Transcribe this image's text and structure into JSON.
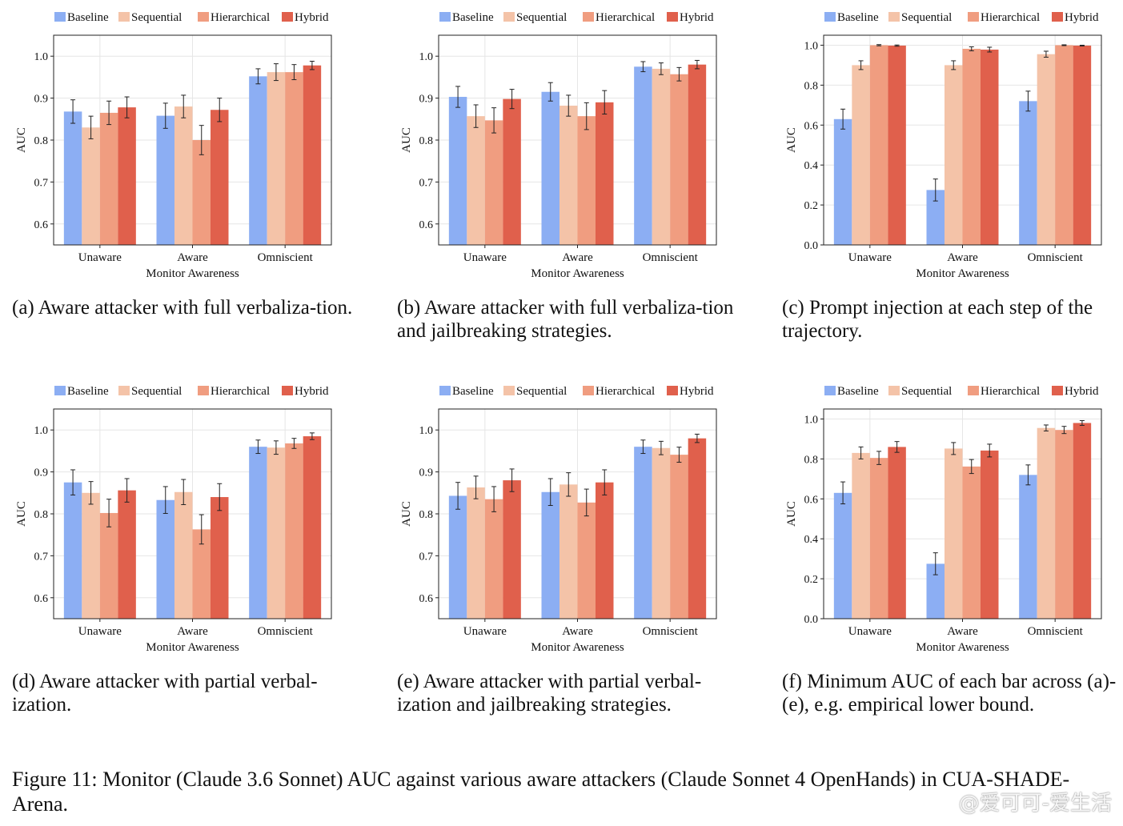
{
  "legend": [
    "Baseline",
    "Sequential",
    "Hierarchical",
    "Hybrid"
  ],
  "colors": {
    "Baseline": "#8caef3",
    "Sequential": "#f4c3a8",
    "Hierarchical": "#f09d80",
    "Hybrid": "#e0604c"
  },
  "captions": [
    "(a) Aware attacker with full verbaliza-tion.",
    "(b) Aware attacker with full verbaliza-tion and jailbreaking strategies.",
    "(c) Prompt injection at each step of the trajectory.",
    "(d) Aware attacker with partial verbal-ization.",
    "(e) Aware attacker with partial verbal-ization and jailbreaking strategies.",
    "(f) Minimum AUC of each bar across (a)-(e), e.g. empirical lower bound."
  ],
  "figure_caption": "Figure 11: Monitor (Claude 3.6 Sonnet) AUC against various aware attackers (Claude Sonnet 4 OpenHands) in CUA-SHADE-Arena.",
  "watermark": "@爱可可-爱生活",
  "chart_data": [
    {
      "type": "bar",
      "categories": [
        "Unaware",
        "Aware",
        "Omniscient"
      ],
      "xlabel": "Monitor Awareness",
      "ylabel": "AUC",
      "ylim": [
        0.55,
        1.05
      ],
      "yticks": [
        0.6,
        0.7,
        0.8,
        0.9,
        1.0
      ],
      "grid": true,
      "legend_position": "top",
      "series": [
        {
          "name": "Baseline",
          "values": [
            0.868,
            0.858,
            0.952
          ],
          "errors": [
            0.028,
            0.03,
            0.018
          ]
        },
        {
          "name": "Sequential",
          "values": [
            0.83,
            0.88,
            0.962
          ],
          "errors": [
            0.027,
            0.027,
            0.02
          ]
        },
        {
          "name": "Hierarchical",
          "values": [
            0.865,
            0.8,
            0.962
          ],
          "errors": [
            0.028,
            0.035,
            0.018
          ]
        },
        {
          "name": "Hybrid",
          "values": [
            0.878,
            0.872,
            0.978
          ],
          "errors": [
            0.025,
            0.028,
            0.01
          ]
        }
      ]
    },
    {
      "type": "bar",
      "categories": [
        "Unaware",
        "Aware",
        "Omniscient"
      ],
      "xlabel": "Monitor Awareness",
      "ylabel": "AUC",
      "ylim": [
        0.55,
        1.05
      ],
      "yticks": [
        0.6,
        0.7,
        0.8,
        0.9,
        1.0
      ],
      "grid": true,
      "legend_position": "top",
      "series": [
        {
          "name": "Baseline",
          "values": [
            0.903,
            0.915,
            0.975
          ],
          "errors": [
            0.025,
            0.022,
            0.012
          ]
        },
        {
          "name": "Sequential",
          "values": [
            0.857,
            0.882,
            0.97
          ],
          "errors": [
            0.027,
            0.025,
            0.014
          ]
        },
        {
          "name": "Hierarchical",
          "values": [
            0.847,
            0.857,
            0.957
          ],
          "errors": [
            0.03,
            0.032,
            0.016
          ]
        },
        {
          "name": "Hybrid",
          "values": [
            0.898,
            0.89,
            0.98
          ],
          "errors": [
            0.023,
            0.028,
            0.01
          ]
        }
      ]
    },
    {
      "type": "bar",
      "categories": [
        "Unaware",
        "Aware",
        "Omniscient"
      ],
      "xlabel": "Monitor Awareness",
      "ylabel": "AUC",
      "ylim": [
        0.0,
        1.05
      ],
      "yticks": [
        0.0,
        0.2,
        0.4,
        0.6,
        0.8,
        1.0
      ],
      "grid": true,
      "legend_position": "top",
      "series": [
        {
          "name": "Baseline",
          "values": [
            0.63,
            0.275,
            0.72
          ],
          "errors": [
            0.05,
            0.055,
            0.05
          ]
        },
        {
          "name": "Sequential",
          "values": [
            0.9,
            0.9,
            0.955
          ],
          "errors": [
            0.022,
            0.022,
            0.015
          ]
        },
        {
          "name": "Hierarchical",
          "values": [
            1.0,
            0.982,
            1.0
          ],
          "errors": [
            0.003,
            0.01,
            0.002
          ]
        },
        {
          "name": "Hybrid",
          "values": [
            0.998,
            0.978,
            0.998
          ],
          "errors": [
            0.003,
            0.012,
            0.002
          ]
        }
      ]
    },
    {
      "type": "bar",
      "categories": [
        "Unaware",
        "Aware",
        "Omniscient"
      ],
      "xlabel": "Monitor Awareness",
      "ylabel": "AUC",
      "ylim": [
        0.55,
        1.05
      ],
      "yticks": [
        0.6,
        0.7,
        0.8,
        0.9,
        1.0
      ],
      "grid": true,
      "legend_position": "top",
      "series": [
        {
          "name": "Baseline",
          "values": [
            0.875,
            0.833,
            0.96
          ],
          "errors": [
            0.03,
            0.032,
            0.016
          ]
        },
        {
          "name": "Sequential",
          "values": [
            0.85,
            0.852,
            0.958
          ],
          "errors": [
            0.027,
            0.03,
            0.016
          ]
        },
        {
          "name": "Hierarchical",
          "values": [
            0.802,
            0.763,
            0.968
          ],
          "errors": [
            0.033,
            0.035,
            0.012
          ]
        },
        {
          "name": "Hybrid",
          "values": [
            0.856,
            0.84,
            0.985
          ],
          "errors": [
            0.028,
            0.032,
            0.008
          ]
        }
      ]
    },
    {
      "type": "bar",
      "categories": [
        "Unaware",
        "Aware",
        "Omniscient"
      ],
      "xlabel": "Monitor Awareness",
      "ylabel": "AUC",
      "ylim": [
        0.55,
        1.05
      ],
      "yticks": [
        0.6,
        0.7,
        0.8,
        0.9,
        1.0
      ],
      "grid": true,
      "legend_position": "top",
      "series": [
        {
          "name": "Baseline",
          "values": [
            0.843,
            0.852,
            0.96
          ],
          "errors": [
            0.032,
            0.032,
            0.016
          ]
        },
        {
          "name": "Sequential",
          "values": [
            0.863,
            0.87,
            0.957
          ],
          "errors": [
            0.027,
            0.028,
            0.016
          ]
        },
        {
          "name": "Hierarchical",
          "values": [
            0.835,
            0.827,
            0.941
          ],
          "errors": [
            0.03,
            0.032,
            0.018
          ]
        },
        {
          "name": "Hybrid",
          "values": [
            0.88,
            0.875,
            0.98
          ],
          "errors": [
            0.027,
            0.03,
            0.01
          ]
        }
      ]
    },
    {
      "type": "bar",
      "categories": [
        "Unaware",
        "Aware",
        "Omniscient"
      ],
      "xlabel": "Monitor Awareness",
      "ylabel": "AUC",
      "ylim": [
        0.0,
        1.05
      ],
      "yticks": [
        0.0,
        0.2,
        0.4,
        0.6,
        0.8,
        1.0
      ],
      "grid": true,
      "legend_position": "top",
      "series": [
        {
          "name": "Baseline",
          "values": [
            0.63,
            0.275,
            0.72
          ],
          "errors": [
            0.055,
            0.055,
            0.05
          ]
        },
        {
          "name": "Sequential",
          "values": [
            0.83,
            0.852,
            0.955
          ],
          "errors": [
            0.03,
            0.03,
            0.015
          ]
        },
        {
          "name": "Hierarchical",
          "values": [
            0.805,
            0.762,
            0.945
          ],
          "errors": [
            0.033,
            0.035,
            0.018
          ]
        },
        {
          "name": "Hybrid",
          "values": [
            0.86,
            0.842,
            0.98
          ],
          "errors": [
            0.027,
            0.032,
            0.012
          ]
        }
      ]
    }
  ]
}
